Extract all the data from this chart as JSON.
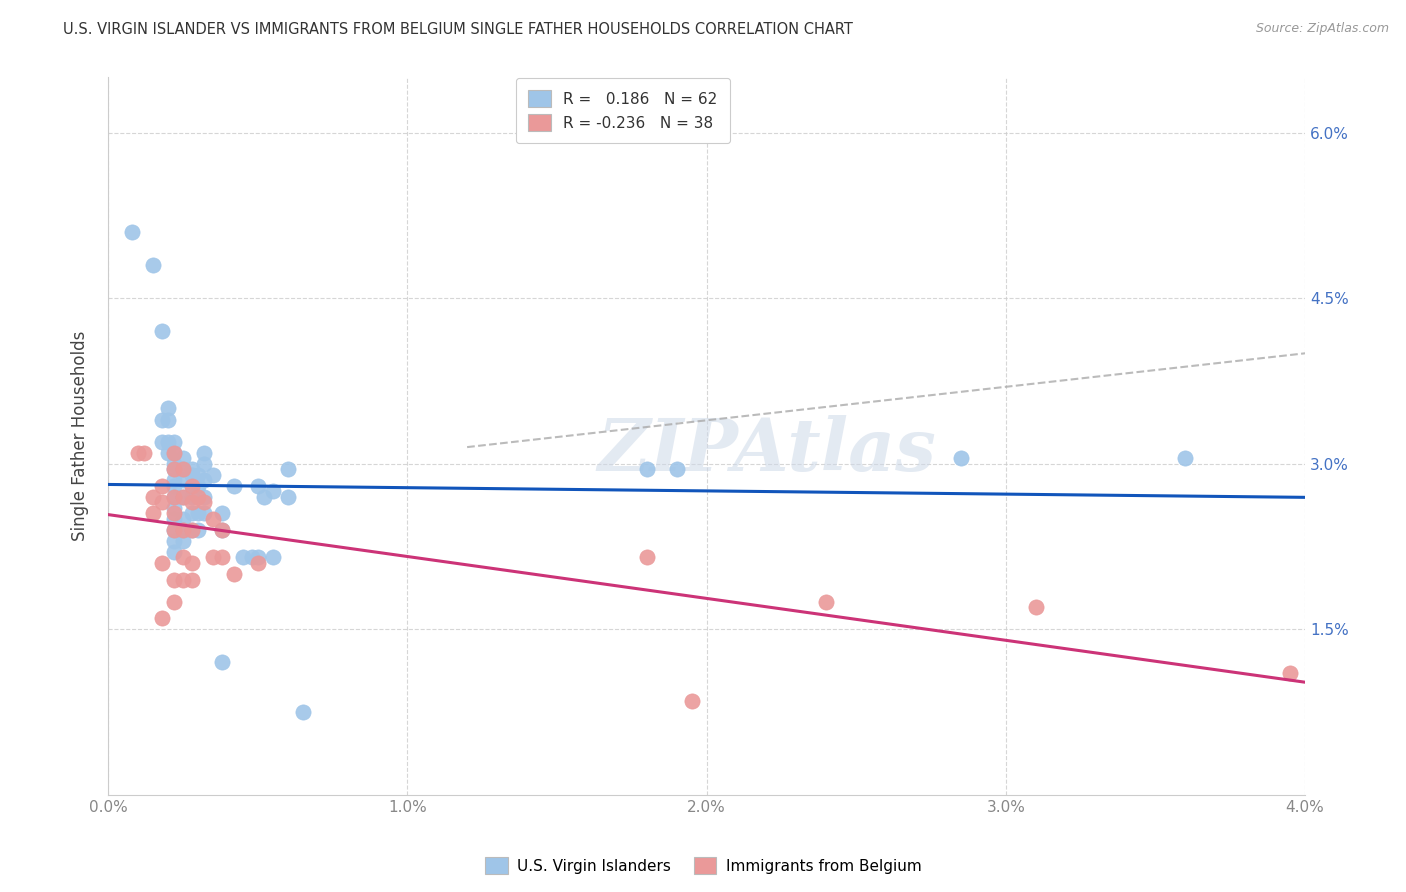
{
  "title": "U.S. VIRGIN ISLANDER VS IMMIGRANTS FROM BELGIUM SINGLE FATHER HOUSEHOLDS CORRELATION CHART",
  "source": "Source: ZipAtlas.com",
  "ylabel": "Single Father Households",
  "xmin": 0.0,
  "xmax": 0.04,
  "ymin": 0.0,
  "ymax": 0.065,
  "ytick_vals": [
    0.015,
    0.03,
    0.045,
    0.06
  ],
  "ytick_labels": [
    "1.5%",
    "3.0%",
    "4.5%",
    "6.0%"
  ],
  "xtick_vals": [
    0.0,
    0.01,
    0.02,
    0.03,
    0.04
  ],
  "xtick_labels": [
    "0.0%",
    "1.0%",
    "2.0%",
    "3.0%",
    "4.0%"
  ],
  "watermark": "ZIPAtlas",
  "legend_r1_prefix": "R = ",
  "legend_r1_val": " 0.186",
  "legend_r1_n": "N = 62",
  "legend_r2_prefix": "R = ",
  "legend_r2_val": "-0.236",
  "legend_r2_n": "N = 38",
  "blue_color": "#9fc5e8",
  "pink_color": "#ea9999",
  "blue_line_color": "#1155bb",
  "pink_line_color": "#cc3377",
  "dashed_line_color": "#aaaaaa",
  "blue_scatter": [
    [
      0.0008,
      0.051
    ],
    [
      0.0015,
      0.048
    ],
    [
      0.0018,
      0.042
    ],
    [
      0.0018,
      0.034
    ],
    [
      0.0018,
      0.032
    ],
    [
      0.002,
      0.035
    ],
    [
      0.002,
      0.034
    ],
    [
      0.002,
      0.032
    ],
    [
      0.002,
      0.031
    ],
    [
      0.0022,
      0.032
    ],
    [
      0.0022,
      0.031
    ],
    [
      0.0022,
      0.03
    ],
    [
      0.0022,
      0.0295
    ],
    [
      0.0022,
      0.0285
    ],
    [
      0.0022,
      0.028
    ],
    [
      0.0022,
      0.027
    ],
    [
      0.0022,
      0.026
    ],
    [
      0.0022,
      0.025
    ],
    [
      0.0022,
      0.024
    ],
    [
      0.0022,
      0.023
    ],
    [
      0.0022,
      0.022
    ],
    [
      0.0025,
      0.0305
    ],
    [
      0.0025,
      0.0295
    ],
    [
      0.0025,
      0.0285
    ],
    [
      0.0025,
      0.027
    ],
    [
      0.0025,
      0.025
    ],
    [
      0.0025,
      0.024
    ],
    [
      0.0025,
      0.023
    ],
    [
      0.0028,
      0.0295
    ],
    [
      0.0028,
      0.029
    ],
    [
      0.0028,
      0.028
    ],
    [
      0.0028,
      0.027
    ],
    [
      0.0028,
      0.0255
    ],
    [
      0.0028,
      0.024
    ],
    [
      0.003,
      0.029
    ],
    [
      0.003,
      0.028
    ],
    [
      0.003,
      0.0255
    ],
    [
      0.003,
      0.024
    ],
    [
      0.0032,
      0.031
    ],
    [
      0.0032,
      0.03
    ],
    [
      0.0032,
      0.0285
    ],
    [
      0.0032,
      0.027
    ],
    [
      0.0032,
      0.0255
    ],
    [
      0.0035,
      0.029
    ],
    [
      0.0038,
      0.0255
    ],
    [
      0.0038,
      0.024
    ],
    [
      0.0038,
      0.012
    ],
    [
      0.0042,
      0.028
    ],
    [
      0.0045,
      0.0215
    ],
    [
      0.0048,
      0.0215
    ],
    [
      0.005,
      0.028
    ],
    [
      0.005,
      0.0215
    ],
    [
      0.0052,
      0.027
    ],
    [
      0.0055,
      0.0275
    ],
    [
      0.0055,
      0.0215
    ],
    [
      0.006,
      0.0295
    ],
    [
      0.006,
      0.027
    ],
    [
      0.0065,
      0.0075
    ],
    [
      0.018,
      0.0295
    ],
    [
      0.019,
      0.0295
    ],
    [
      0.0285,
      0.0305
    ],
    [
      0.036,
      0.0305
    ]
  ],
  "pink_scatter": [
    [
      0.001,
      0.031
    ],
    [
      0.0012,
      0.031
    ],
    [
      0.0015,
      0.027
    ],
    [
      0.0015,
      0.0255
    ],
    [
      0.0018,
      0.028
    ],
    [
      0.0018,
      0.0265
    ],
    [
      0.0018,
      0.021
    ],
    [
      0.0018,
      0.016
    ],
    [
      0.0022,
      0.031
    ],
    [
      0.0022,
      0.0295
    ],
    [
      0.0022,
      0.027
    ],
    [
      0.0022,
      0.0255
    ],
    [
      0.0022,
      0.024
    ],
    [
      0.0022,
      0.0195
    ],
    [
      0.0022,
      0.0175
    ],
    [
      0.0025,
      0.0295
    ],
    [
      0.0025,
      0.027
    ],
    [
      0.0025,
      0.024
    ],
    [
      0.0025,
      0.0215
    ],
    [
      0.0025,
      0.0195
    ],
    [
      0.0028,
      0.028
    ],
    [
      0.0028,
      0.0265
    ],
    [
      0.0028,
      0.024
    ],
    [
      0.0028,
      0.021
    ],
    [
      0.0028,
      0.0195
    ],
    [
      0.003,
      0.027
    ],
    [
      0.0032,
      0.0265
    ],
    [
      0.0035,
      0.025
    ],
    [
      0.0035,
      0.0215
    ],
    [
      0.0038,
      0.024
    ],
    [
      0.0038,
      0.0215
    ],
    [
      0.0042,
      0.02
    ],
    [
      0.005,
      0.021
    ],
    [
      0.018,
      0.0215
    ],
    [
      0.0195,
      0.0085
    ],
    [
      0.024,
      0.0175
    ],
    [
      0.031,
      0.017
    ],
    [
      0.0395,
      0.011
    ]
  ]
}
